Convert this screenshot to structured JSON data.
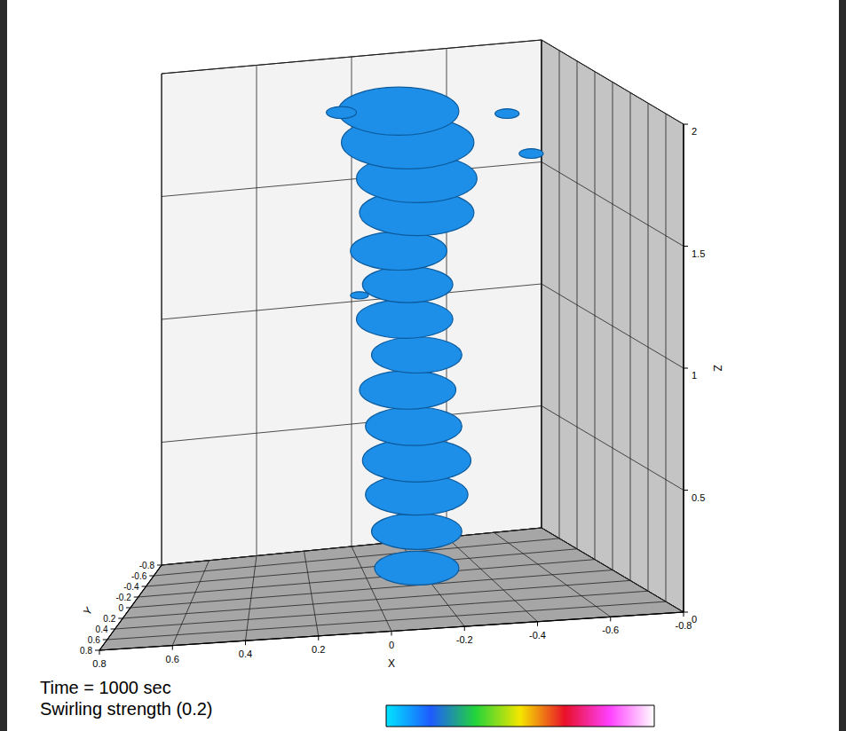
{
  "chart_data": {
    "type": "isosurface3d",
    "annotations": [
      "Time = 1000 sec",
      "Swirling strength (0.2)"
    ],
    "x_label": "X",
    "y_label": "Y",
    "z_label": "Z",
    "xlim": [
      -0.8,
      0.8
    ],
    "xticks": [
      -0.8,
      -0.6,
      -0.4,
      -0.2,
      0,
      0.2,
      0.4,
      0.6,
      0.8
    ],
    "ylim": [
      -0.8,
      0.8
    ],
    "yticks": [
      -0.8,
      -0.6,
      -0.4,
      -0.2,
      0,
      0.2,
      0.4,
      0.6,
      0.8
    ],
    "zlim": [
      0,
      2
    ],
    "zticks": [
      0,
      0.5,
      1,
      1.5,
      2
    ],
    "grid": true,
    "color": "#1e8fe8",
    "blobs": [
      {
        "x": -0.15,
        "z": 0.07,
        "r": 0.14
      },
      {
        "x": -0.15,
        "z": 0.22,
        "r": 0.15
      },
      {
        "x": -0.15,
        "z": 0.37,
        "r": 0.17
      },
      {
        "x": -0.15,
        "z": 0.51,
        "r": 0.18
      },
      {
        "x": -0.14,
        "z": 0.65,
        "r": 0.16
      },
      {
        "x": -0.12,
        "z": 0.8,
        "r": 0.16
      },
      {
        "x": -0.15,
        "z": 0.94,
        "r": 0.15
      },
      {
        "x": -0.11,
        "z": 1.09,
        "r": 0.16
      },
      {
        "x": -0.12,
        "z": 1.23,
        "r": 0.15
      },
      {
        "x": -0.09,
        "z": 1.37,
        "r": 0.16
      },
      {
        "x": -0.15,
        "z": 1.52,
        "r": 0.19
      },
      {
        "x": -0.15,
        "z": 1.66,
        "r": 0.2
      },
      {
        "x": -0.12,
        "z": 1.81,
        "r": 0.22
      },
      {
        "x": -0.09,
        "z": 1.94,
        "r": 0.2
      },
      {
        "x": -0.53,
        "z": 1.73,
        "r": 0.04
      },
      {
        "x": 0.04,
        "z": 1.2,
        "r": 0.03
      },
      {
        "x": 0.1,
        "z": 1.95,
        "r": 0.05
      },
      {
        "x": -0.45,
        "z": 1.9,
        "r": 0.04
      }
    ],
    "colorbar": {
      "colors": [
        "#00e5ff",
        "#1e5bff",
        "#22d43a",
        "#f5e600",
        "#e8102a",
        "#ff40ff",
        "#ffffff"
      ]
    }
  }
}
